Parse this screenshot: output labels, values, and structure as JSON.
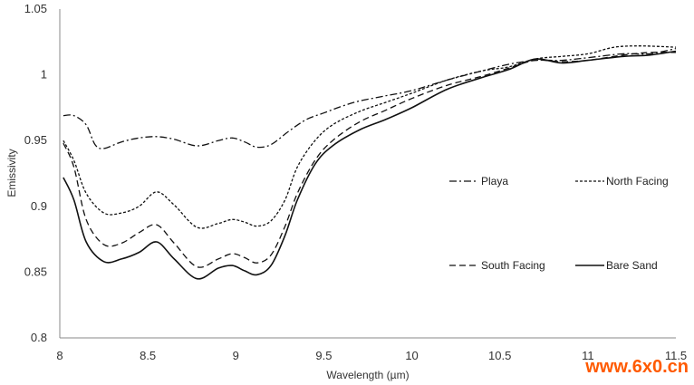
{
  "chart_data": {
    "type": "line",
    "xlabel": "Wavelength (µm)",
    "ylabel": "Emissivity",
    "xlim": [
      8,
      11.5
    ],
    "ylim": [
      0.8,
      1.05
    ],
    "xticks": [
      "8",
      "8.5",
      "9",
      "9.5",
      "10",
      "10.5",
      "11",
      "11.5"
    ],
    "yticks": [
      "0.8",
      "0.85",
      "0.9",
      "0.95",
      "1",
      "1.05"
    ],
    "grid": false,
    "legend_position": "center-right",
    "series": [
      {
        "name": "Playa",
        "dash": "dash-dot",
        "points": [
          [
            8.02,
            0.969
          ],
          [
            8.08,
            0.969
          ],
          [
            8.15,
            0.962
          ],
          [
            8.2,
            0.947
          ],
          [
            8.25,
            0.944
          ],
          [
            8.35,
            0.949
          ],
          [
            8.45,
            0.952
          ],
          [
            8.55,
            0.953
          ],
          [
            8.65,
            0.951
          ],
          [
            8.78,
            0.946
          ],
          [
            8.9,
            0.95
          ],
          [
            8.98,
            0.952
          ],
          [
            9.05,
            0.949
          ],
          [
            9.12,
            0.945
          ],
          [
            9.2,
            0.947
          ],
          [
            9.3,
            0.957
          ],
          [
            9.4,
            0.966
          ],
          [
            9.5,
            0.971
          ],
          [
            9.6,
            0.976
          ],
          [
            9.7,
            0.98
          ],
          [
            9.85,
            0.984
          ],
          [
            10.0,
            0.988
          ],
          [
            10.2,
            0.996
          ],
          [
            10.4,
            1.003
          ],
          [
            10.55,
            1.008
          ],
          [
            10.7,
            1.011
          ],
          [
            10.85,
            1.011
          ],
          [
            11.0,
            1.013
          ],
          [
            11.2,
            1.016
          ],
          [
            11.35,
            1.016
          ],
          [
            11.5,
            1.02
          ]
        ]
      },
      {
        "name": "North Facing",
        "dash": "short-dash",
        "points": [
          [
            8.02,
            0.95
          ],
          [
            8.08,
            0.935
          ],
          [
            8.15,
            0.91
          ],
          [
            8.25,
            0.895
          ],
          [
            8.35,
            0.895
          ],
          [
            8.45,
            0.9
          ],
          [
            8.55,
            0.911
          ],
          [
            8.65,
            0.901
          ],
          [
            8.78,
            0.884
          ],
          [
            8.9,
            0.887
          ],
          [
            8.98,
            0.89
          ],
          [
            9.05,
            0.888
          ],
          [
            9.12,
            0.885
          ],
          [
            9.2,
            0.889
          ],
          [
            9.28,
            0.905
          ],
          [
            9.35,
            0.93
          ],
          [
            9.45,
            0.95
          ],
          [
            9.55,
            0.962
          ],
          [
            9.7,
            0.972
          ],
          [
            9.85,
            0.979
          ],
          [
            10.0,
            0.986
          ],
          [
            10.2,
            0.996
          ],
          [
            10.4,
            1.003
          ],
          [
            10.55,
            1.006
          ],
          [
            10.7,
            1.012
          ],
          [
            10.85,
            1.014
          ],
          [
            11.0,
            1.016
          ],
          [
            11.15,
            1.021
          ],
          [
            11.3,
            1.022
          ],
          [
            11.5,
            1.021
          ]
        ]
      },
      {
        "name": "South Facing",
        "dash": "long-dash",
        "points": [
          [
            8.02,
            0.948
          ],
          [
            8.08,
            0.93
          ],
          [
            8.15,
            0.89
          ],
          [
            8.25,
            0.871
          ],
          [
            8.35,
            0.872
          ],
          [
            8.45,
            0.88
          ],
          [
            8.55,
            0.886
          ],
          [
            8.65,
            0.872
          ],
          [
            8.78,
            0.854
          ],
          [
            8.9,
            0.86
          ],
          [
            8.98,
            0.864
          ],
          [
            9.05,
            0.861
          ],
          [
            9.12,
            0.857
          ],
          [
            9.2,
            0.863
          ],
          [
            9.28,
            0.885
          ],
          [
            9.35,
            0.91
          ],
          [
            9.45,
            0.935
          ],
          [
            9.55,
            0.95
          ],
          [
            9.7,
            0.964
          ],
          [
            9.85,
            0.973
          ],
          [
            10.0,
            0.982
          ],
          [
            10.2,
            0.992
          ],
          [
            10.4,
            0.999
          ],
          [
            10.55,
            1.005
          ],
          [
            10.7,
            1.011
          ],
          [
            10.85,
            1.01
          ],
          [
            11.0,
            1.011
          ],
          [
            11.2,
            1.015
          ],
          [
            11.35,
            1.017
          ],
          [
            11.5,
            1.017
          ]
        ]
      },
      {
        "name": "Bare Sand",
        "dash": "solid",
        "points": [
          [
            8.02,
            0.922
          ],
          [
            8.08,
            0.905
          ],
          [
            8.15,
            0.873
          ],
          [
            8.25,
            0.858
          ],
          [
            8.35,
            0.86
          ],
          [
            8.45,
            0.865
          ],
          [
            8.55,
            0.873
          ],
          [
            8.65,
            0.86
          ],
          [
            8.78,
            0.845
          ],
          [
            8.9,
            0.853
          ],
          [
            8.98,
            0.855
          ],
          [
            9.05,
            0.851
          ],
          [
            9.12,
            0.848
          ],
          [
            9.2,
            0.855
          ],
          [
            9.28,
            0.878
          ],
          [
            9.35,
            0.905
          ],
          [
            9.45,
            0.932
          ],
          [
            9.55,
            0.946
          ],
          [
            9.7,
            0.958
          ],
          [
            9.85,
            0.966
          ],
          [
            10.0,
            0.975
          ],
          [
            10.2,
            0.989
          ],
          [
            10.4,
            0.998
          ],
          [
            10.55,
            1.004
          ],
          [
            10.7,
            1.012
          ],
          [
            10.85,
            1.009
          ],
          [
            11.0,
            1.011
          ],
          [
            11.2,
            1.014
          ],
          [
            11.35,
            1.015
          ],
          [
            11.5,
            1.018
          ]
        ]
      }
    ]
  },
  "watermark": "www.6x0.cn",
  "colors": {
    "axis": "#888888",
    "line": "#111111",
    "text": "#333333",
    "watermark": "#ff5a00"
  }
}
